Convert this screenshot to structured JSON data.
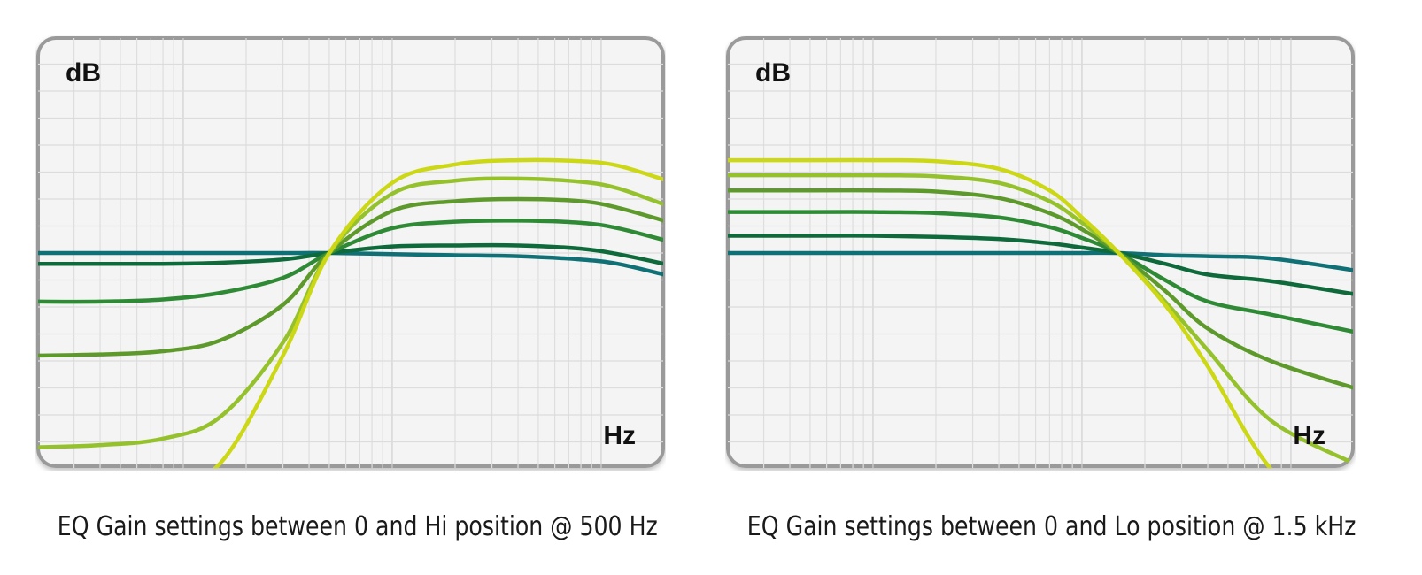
{
  "chart_data": [
    {
      "type": "line",
      "title": "EQ Gain settings between 0 and Hi position @ 500 Hz",
      "ylabel": "dB",
      "xlabel": "Hz",
      "x_scale": "log",
      "xlim": [
        20,
        20000
      ],
      "ylim": [
        -20,
        20
      ],
      "grid": true,
      "legend": "none",
      "x": [
        20,
        40,
        80,
        150,
        300,
        500,
        1000,
        2000,
        4000,
        8000,
        12000,
        20000
      ],
      "series": [
        {
          "color": "#0f7075",
          "values": [
            0,
            0,
            0,
            0,
            0,
            0,
            -0.1,
            -0.2,
            -0.3,
            -0.6,
            -1.0,
            -2.0
          ]
        },
        {
          "color": "#0e6a3a",
          "values": [
            -1.0,
            -1.0,
            -1.0,
            -0.9,
            -0.6,
            0,
            0.6,
            0.7,
            0.7,
            0.4,
            -0.1,
            -1.0
          ]
        },
        {
          "color": "#2f8a35",
          "values": [
            -4.5,
            -4.5,
            -4.3,
            -3.7,
            -2.3,
            0,
            2.3,
            2.9,
            3.0,
            2.8,
            2.3,
            1.2
          ]
        },
        {
          "color": "#5e9a2b",
          "values": [
            -9.5,
            -9.4,
            -9.1,
            -8.1,
            -4.8,
            0,
            3.9,
            4.8,
            5.0,
            4.8,
            4.2,
            3.0
          ]
        },
        {
          "color": "#95c22c",
          "values": [
            -18.0,
            -17.8,
            -17.2,
            -15.2,
            -8.3,
            0,
            5.5,
            6.7,
            6.9,
            6.6,
            6.0,
            4.5
          ]
        },
        {
          "color": "#ccd815",
          "values": [
            -22.0,
            -22.0,
            -21.5,
            -19.5,
            -9.5,
            0,
            6.5,
            8.2,
            8.6,
            8.5,
            8.1,
            6.8
          ]
        }
      ]
    },
    {
      "type": "line",
      "title": "EQ Gain settings between 0 and Lo position @ 1.5 kHz",
      "ylabel": "dB",
      "xlabel": "Hz",
      "x_scale": "log",
      "xlim": [
        20,
        20000
      ],
      "ylim": [
        -20,
        20
      ],
      "grid": true,
      "legend": "none",
      "x": [
        20,
        50,
        100,
        200,
        400,
        700,
        1000,
        1500,
        2500,
        4000,
        8000,
        20000
      ],
      "series": [
        {
          "color": "#0f7075",
          "values": [
            0,
            0,
            0,
            0,
            0,
            0,
            0,
            0,
            -0.2,
            -0.3,
            -0.5,
            -1.6
          ]
        },
        {
          "color": "#0e6a3a",
          "values": [
            1.6,
            1.6,
            1.6,
            1.5,
            1.3,
            0.9,
            0.5,
            0,
            -1.0,
            -2.0,
            -2.6,
            -3.8
          ]
        },
        {
          "color": "#2f8a35",
          "values": [
            3.8,
            3.8,
            3.8,
            3.7,
            3.3,
            2.4,
            1.4,
            0,
            -2.5,
            -4.5,
            -5.7,
            -7.3
          ]
        },
        {
          "color": "#5e9a2b",
          "values": [
            5.8,
            5.8,
            5.8,
            5.7,
            5.1,
            3.7,
            2.2,
            0,
            -3.5,
            -7.0,
            -10.0,
            -12.5
          ]
        },
        {
          "color": "#95c22c",
          "values": [
            7.2,
            7.2,
            7.2,
            7.1,
            6.5,
            4.8,
            2.8,
            0,
            -4.5,
            -9.0,
            -15.5,
            -19.5
          ]
        },
        {
          "color": "#ccd815",
          "values": [
            8.6,
            8.6,
            8.6,
            8.5,
            7.8,
            5.8,
            3.3,
            0,
            -4.8,
            -10.5,
            -20.0,
            -27.0
          ]
        }
      ]
    }
  ]
}
